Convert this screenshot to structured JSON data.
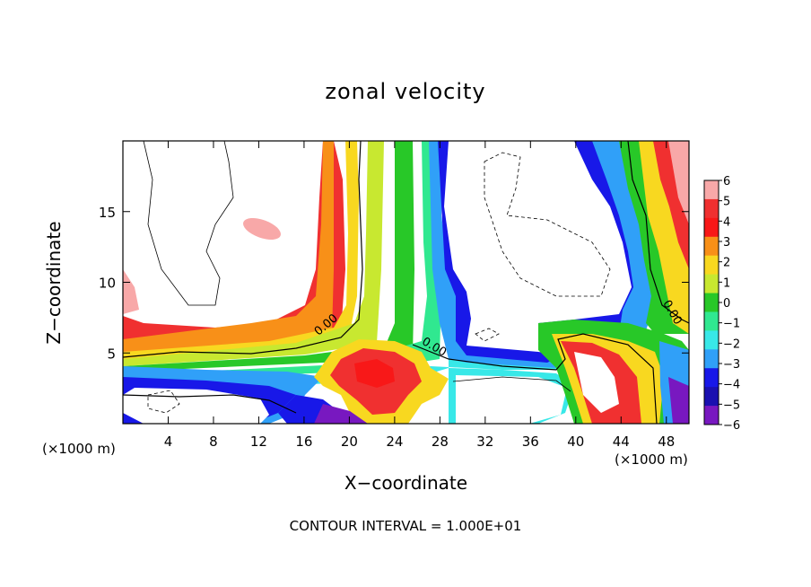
{
  "chart_data": {
    "type": "heatmap",
    "title": "zonal velocity",
    "xlabel": "X−coordinate",
    "ylabel": "Z−coordinate",
    "x_unit": "(×1000 m)",
    "y_unit": "(×1000 m)",
    "xlim": [
      0,
      50
    ],
    "ylim": [
      0,
      20
    ],
    "x_ticks": [
      4,
      8,
      12,
      16,
      20,
      24,
      28,
      32,
      36,
      40,
      44,
      48
    ],
    "y_ticks": [
      5,
      10,
      15
    ],
    "colorbar": {
      "levels": [
        "6",
        "5",
        "4",
        "3",
        "2",
        "1",
        "0",
        "−1",
        "−2",
        "−3",
        "−4",
        "−5",
        "−6"
      ],
      "colors": [
        "#f8a8a8",
        "#f03030",
        "#f81818",
        "#f89018",
        "#f8d820",
        "#c8e830",
        "#28c828",
        "#30e890",
        "#38e8e8",
        "#30a0f8",
        "#1818e8",
        "#1a10b0",
        "#7818c0"
      ]
    },
    "contour_labels": [
      "0.00",
      "0.00",
      "0.00"
    ],
    "contour_interval_label": "CONTOUR INTERVAL =",
    "contour_interval": "1.000E+01"
  }
}
